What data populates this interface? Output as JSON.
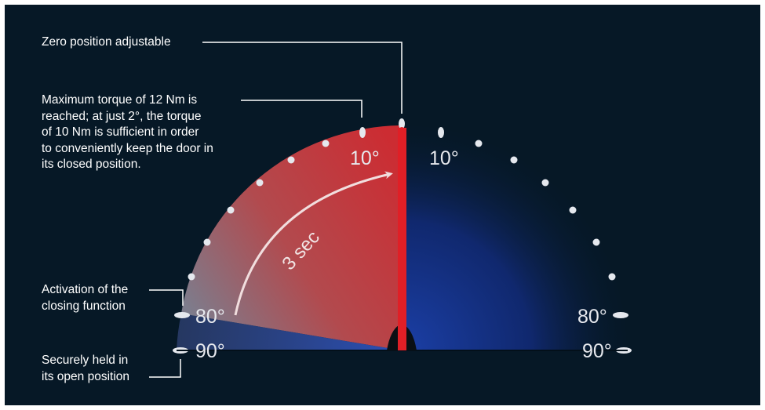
{
  "annotations": {
    "zero_position": "Zero position adjustable",
    "max_torque": [
      "Maximum torque of 12 Nm is",
      "reached; at just 2°, the torque",
      "of 10 Nm is sufficient in order",
      "to conveniently keep the door in",
      "its closed position."
    ],
    "activation": [
      "Activation of the",
      "closing function"
    ],
    "held_open": [
      "Securely held in",
      "its open position"
    ]
  },
  "degree_labels": {
    "left_10": "10°",
    "right_10": "10°",
    "left_80": "80°",
    "right_80": "80°",
    "left_90": "90°",
    "right_90": "90°"
  },
  "arrow_label": "3 sec",
  "colors": {
    "background": "#061826",
    "door": "#e01f26",
    "closing_zone": "#c8363a",
    "open_zone": "#1a3c9a",
    "text": "#ffffff"
  }
}
